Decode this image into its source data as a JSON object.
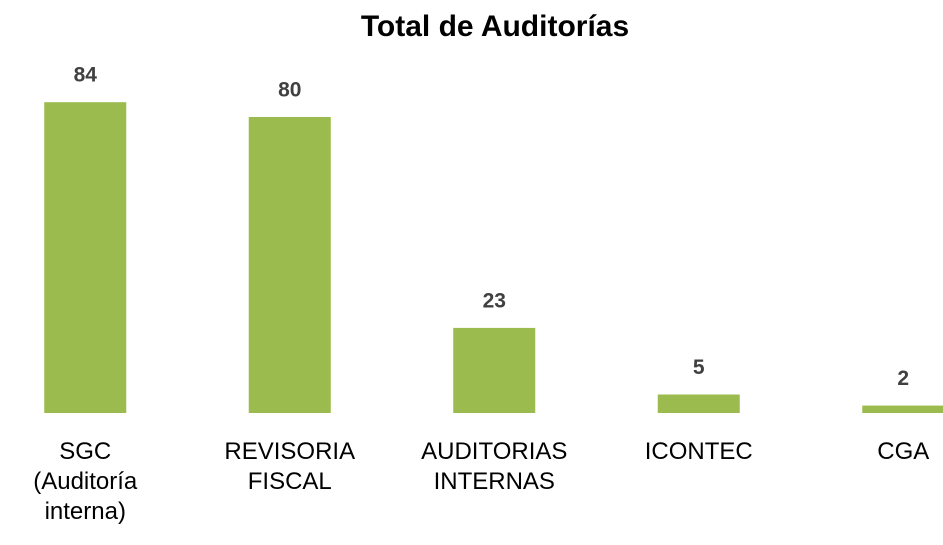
{
  "chart_data": {
    "type": "bar",
    "title": "Total de Auditorías",
    "categories": [
      "SGC\n(Auditoría\ninterna)",
      "REVISORIA\nFISCAL",
      "AUDITORIAS\nINTERNAS",
      "ICONTEC",
      "CGA"
    ],
    "values": [
      84,
      80,
      23,
      5,
      2
    ],
    "color": "#9bbb4e",
    "ylim": [
      0,
      90
    ],
    "grid": false
  }
}
